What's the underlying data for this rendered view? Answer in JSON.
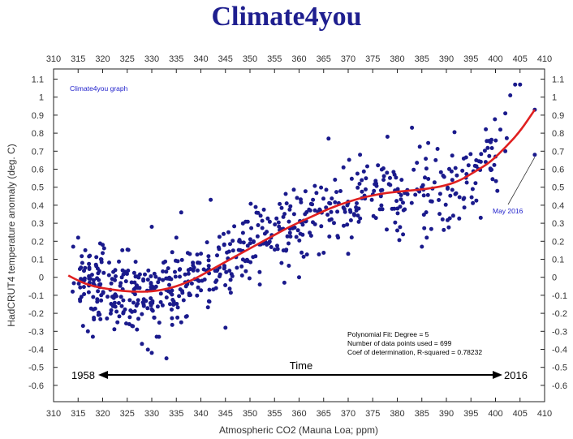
{
  "header": {
    "title": "Climate4you"
  },
  "chart_data": {
    "type": "scatter",
    "xlabel": "Atmospheric CO2 (Mauna Loa; ppm)",
    "ylabel": "HadCRUT4 temperature anomaly (deg. C)",
    "xlim": [
      310,
      410
    ],
    "ylim": [
      -0.6,
      1.1
    ],
    "xticks": [
      "310",
      "315",
      "320",
      "325",
      "330",
      "335",
      "340",
      "345",
      "350",
      "355",
      "360",
      "365",
      "370",
      "375",
      "380",
      "385",
      "390",
      "395",
      "400",
      "405",
      "410"
    ],
    "yticks": [
      "1.1",
      "1",
      "0.9",
      "0.8",
      "0.7",
      "0.6",
      "0.5",
      "0.4",
      "0.3",
      "0.2",
      "0.1",
      "0",
      "-0.1",
      "-0.2",
      "-0.3",
      "-0.4",
      "-0.5",
      "-0.6"
    ],
    "watermark": "Climate4you graph",
    "annotation_last": "May 2016",
    "fit_info": [
      "Polynomial Fit:  Degree = 5",
      "Number of data points used = 699",
      "Coef of determination, R-squared = 0.78232"
    ],
    "time_label": "Time",
    "start_year": "1958",
    "end_year": "2016",
    "n_points": 699,
    "colors": {
      "points": "#1a1a8c",
      "fit": "#e02020",
      "title": "#1f1f8f"
    },
    "fit_curve": [
      [
        313,
        0.01
      ],
      [
        315,
        -0.02
      ],
      [
        318,
        -0.05
      ],
      [
        322,
        -0.07
      ],
      [
        326,
        -0.08
      ],
      [
        330,
        -0.08
      ],
      [
        334,
        -0.06
      ],
      [
        338,
        -0.02
      ],
      [
        342,
        0.04
      ],
      [
        346,
        0.1
      ],
      [
        350,
        0.16
      ],
      [
        354,
        0.22
      ],
      [
        358,
        0.28
      ],
      [
        362,
        0.33
      ],
      [
        366,
        0.38
      ],
      [
        370,
        0.42
      ],
      [
        374,
        0.45
      ],
      [
        378,
        0.47
      ],
      [
        382,
        0.48
      ],
      [
        386,
        0.49
      ],
      [
        390,
        0.51
      ],
      [
        393,
        0.54
      ],
      [
        396,
        0.59
      ],
      [
        399,
        0.64
      ],
      [
        402,
        0.72
      ],
      [
        405,
        0.81
      ],
      [
        408,
        0.93
      ]
    ],
    "series": [
      {
        "points": [
          [
            403,
            1.01
          ],
          [
            404,
            1.07
          ],
          [
            405,
            1.07
          ],
          [
            402,
            0.91
          ],
          [
            401,
            0.82
          ],
          [
            399,
            0.75
          ],
          [
            402,
            0.7
          ],
          [
            400,
            0.67
          ],
          [
            398,
            0.64
          ],
          [
            408,
            0.93
          ],
          [
            408,
            0.68
          ],
          [
            383,
            0.83
          ],
          [
            378,
            0.78
          ],
          [
            366,
            0.77
          ],
          [
            342,
            0.43
          ],
          [
            345,
            -0.28
          ],
          [
            333,
            -0.45
          ],
          [
            330,
            -0.42
          ],
          [
            328,
            -0.37
          ],
          [
            331,
            -0.33
          ],
          [
            318,
            -0.33
          ],
          [
            317,
            -0.3
          ],
          [
            316,
            -0.27
          ],
          [
            323,
            -0.25
          ],
          [
            326,
            -0.27
          ],
          [
            327,
            -0.29
          ],
          [
            336,
            -0.25
          ],
          [
            385,
            0.17
          ],
          [
            386,
            0.22
          ],
          [
            397,
            0.33
          ],
          [
            352,
            -0.04
          ],
          [
            357,
            -0.03
          ],
          [
            360,
            0.0
          ],
          [
            370,
            0.13
          ],
          [
            380,
            0.26
          ],
          [
            335,
            0.22
          ],
          [
            330,
            0.28
          ],
          [
            336,
            0.36
          ],
          [
            315,
            0.22
          ],
          [
            314,
            0.17
          ],
          [
            320,
            0.18
          ],
          [
            324,
            0.15
          ]
        ]
      }
    ]
  }
}
